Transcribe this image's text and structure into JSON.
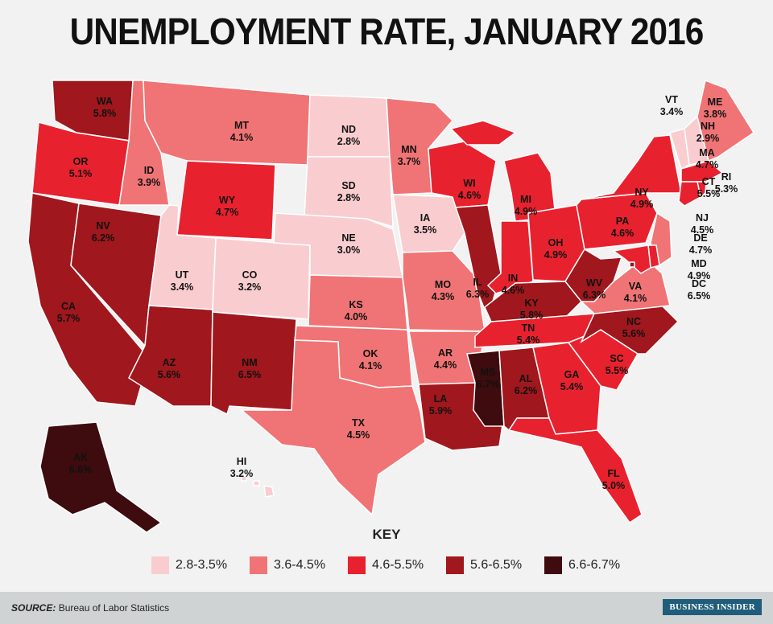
{
  "title": "UNEMPLOYMENT RATE, JANUARY 2016",
  "colors": {
    "b1": "#f9cdd0",
    "b2": "#f07475",
    "b3": "#e8212e",
    "b4": "#a0171d",
    "b5": "#3e0b0e",
    "background": "#f2f2f2"
  },
  "key": {
    "title": "KEY",
    "items": [
      {
        "label": "2.8-3.5%",
        "bucket": "b1"
      },
      {
        "label": "3.6-4.5%",
        "bucket": "b2"
      },
      {
        "label": "4.6-5.5%",
        "bucket": "b3"
      },
      {
        "label": "5.6-6.5%",
        "bucket": "b4"
      },
      {
        "label": "6.6-6.7%",
        "bucket": "b5"
      }
    ]
  },
  "states": [
    {
      "abbr": "WA",
      "value": "5.8%",
      "bucket": "b4"
    },
    {
      "abbr": "OR",
      "value": "5.1%",
      "bucket": "b3"
    },
    {
      "abbr": "CA",
      "value": "5.7%",
      "bucket": "b4"
    },
    {
      "abbr": "NV",
      "value": "6.2%",
      "bucket": "b4"
    },
    {
      "abbr": "ID",
      "value": "3.9%",
      "bucket": "b2"
    },
    {
      "abbr": "MT",
      "value": "4.1%",
      "bucket": "b2"
    },
    {
      "abbr": "WY",
      "value": "4.7%",
      "bucket": "b3"
    },
    {
      "abbr": "UT",
      "value": "3.4%",
      "bucket": "b1"
    },
    {
      "abbr": "AZ",
      "value": "5.6%",
      "bucket": "b4"
    },
    {
      "abbr": "CO",
      "value": "3.2%",
      "bucket": "b1"
    },
    {
      "abbr": "NM",
      "value": "6.5%",
      "bucket": "b4"
    },
    {
      "abbr": "ND",
      "value": "2.8%",
      "bucket": "b1"
    },
    {
      "abbr": "SD",
      "value": "2.8%",
      "bucket": "b1"
    },
    {
      "abbr": "NE",
      "value": "3.0%",
      "bucket": "b1"
    },
    {
      "abbr": "KS",
      "value": "4.0%",
      "bucket": "b2"
    },
    {
      "abbr": "OK",
      "value": "4.1%",
      "bucket": "b2"
    },
    {
      "abbr": "TX",
      "value": "4.5%",
      "bucket": "b2"
    },
    {
      "abbr": "MN",
      "value": "3.7%",
      "bucket": "b2"
    },
    {
      "abbr": "IA",
      "value": "3.5%",
      "bucket": "b1"
    },
    {
      "abbr": "MO",
      "value": "4.3%",
      "bucket": "b2"
    },
    {
      "abbr": "AR",
      "value": "4.4%",
      "bucket": "b2"
    },
    {
      "abbr": "LA",
      "value": "5.9%",
      "bucket": "b4"
    },
    {
      "abbr": "WI",
      "value": "4.6%",
      "bucket": "b3"
    },
    {
      "abbr": "IL",
      "value": "6.3%",
      "bucket": "b4"
    },
    {
      "abbr": "MI",
      "value": "4.9%",
      "bucket": "b3"
    },
    {
      "abbr": "IN",
      "value": "4.6%",
      "bucket": "b3"
    },
    {
      "abbr": "OH",
      "value": "4.9%",
      "bucket": "b3"
    },
    {
      "abbr": "KY",
      "value": "5.8%",
      "bucket": "b4"
    },
    {
      "abbr": "TN",
      "value": "5.4%",
      "bucket": "b3"
    },
    {
      "abbr": "MS",
      "value": "6.7%",
      "bucket": "b5"
    },
    {
      "abbr": "AL",
      "value": "6.2%",
      "bucket": "b4"
    },
    {
      "abbr": "GA",
      "value": "5.4%",
      "bucket": "b3"
    },
    {
      "abbr": "FL",
      "value": "5.0%",
      "bucket": "b3"
    },
    {
      "abbr": "SC",
      "value": "5.5%",
      "bucket": "b3"
    },
    {
      "abbr": "NC",
      "value": "5.6%",
      "bucket": "b4"
    },
    {
      "abbr": "VA",
      "value": "4.1%",
      "bucket": "b2"
    },
    {
      "abbr": "WV",
      "value": "6.3%",
      "bucket": "b4"
    },
    {
      "abbr": "PA",
      "value": "4.6%",
      "bucket": "b3"
    },
    {
      "abbr": "NY",
      "value": "4.9%",
      "bucket": "b3"
    },
    {
      "abbr": "VT",
      "value": "3.4%",
      "bucket": "b1"
    },
    {
      "abbr": "NH",
      "value": "2.9%",
      "bucket": "b1"
    },
    {
      "abbr": "ME",
      "value": "3.8%",
      "bucket": "b2"
    },
    {
      "abbr": "MA",
      "value": "4.7%",
      "bucket": "b3"
    },
    {
      "abbr": "RI",
      "value": "5.3%",
      "bucket": "b3"
    },
    {
      "abbr": "CT",
      "value": "5.5%",
      "bucket": "b3"
    },
    {
      "abbr": "NJ",
      "value": "4.5%",
      "bucket": "b2"
    },
    {
      "abbr": "DE",
      "value": "4.7%",
      "bucket": "b3"
    },
    {
      "abbr": "MD",
      "value": "4.9%",
      "bucket": "b3"
    },
    {
      "abbr": "DC",
      "value": "6.5%",
      "bucket": "b4"
    },
    {
      "abbr": "AK",
      "value": "6.6%",
      "bucket": "b5"
    },
    {
      "abbr": "HI",
      "value": "3.2%",
      "bucket": "b1"
    }
  ],
  "footer": {
    "source_label": "SOURCE:",
    "source_text": "Bureau of Labor Statistics",
    "brand": "BUSINESS INSIDER"
  }
}
